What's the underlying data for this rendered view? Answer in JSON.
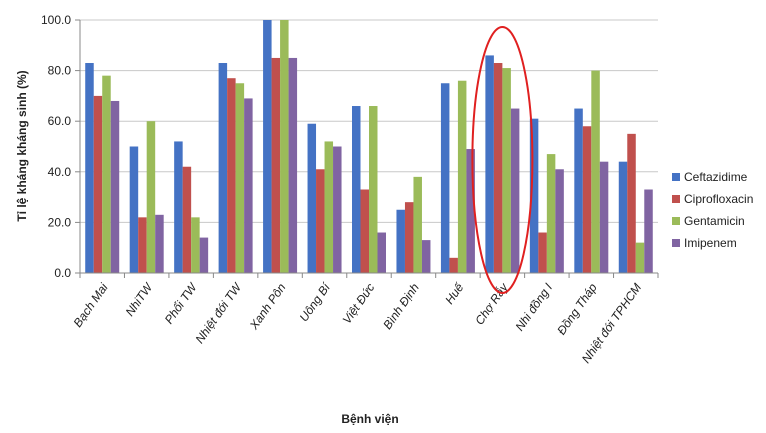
{
  "chart_data": {
    "type": "bar",
    "xlabel": "Bệnh viện",
    "ylabel": "Tỉ lệ kháng kháng sinh (%)",
    "ylim": [
      0,
      100
    ],
    "yticks": [
      "0.0",
      "20.0",
      "40.0",
      "60.0",
      "80.0",
      "100.0"
    ],
    "grid": true,
    "legend_position": "right",
    "categories": [
      "Bạch Mai",
      "NhiTW",
      "Phổi TW",
      "Nhiệt đới TW",
      "Xanh Pôn",
      "Uông Bí",
      "Việt Đức",
      "Bình Định",
      "Huế",
      "Chợ Rẫy",
      "Nhi đồng I",
      "Đồng Tháp",
      "Nhiệt đới TPHCM"
    ],
    "series": [
      {
        "name": "Ceftazidime",
        "color": "#4472c4",
        "values": [
          83,
          50,
          52,
          83,
          100,
          59,
          66,
          25,
          75,
          86,
          61,
          65,
          44
        ]
      },
      {
        "name": "Ciprofloxacin",
        "color": "#c0504d",
        "values": [
          70,
          22,
          42,
          77,
          85,
          41,
          33,
          28,
          6,
          83,
          16,
          58,
          55
        ]
      },
      {
        "name": "Gentamicin",
        "color": "#9bbb59",
        "values": [
          78,
          60,
          22,
          75,
          100,
          52,
          66,
          38,
          76,
          81,
          47,
          80,
          12
        ]
      },
      {
        "name": "Imipenem",
        "color": "#8064a2",
        "values": [
          68,
          23,
          14,
          69,
          85,
          50,
          16,
          13,
          49,
          65,
          41,
          44,
          33
        ]
      }
    ],
    "annotation": {
      "type": "ellipse",
      "target_category": "Chợ Rẫy",
      "color": "#e02020"
    }
  }
}
